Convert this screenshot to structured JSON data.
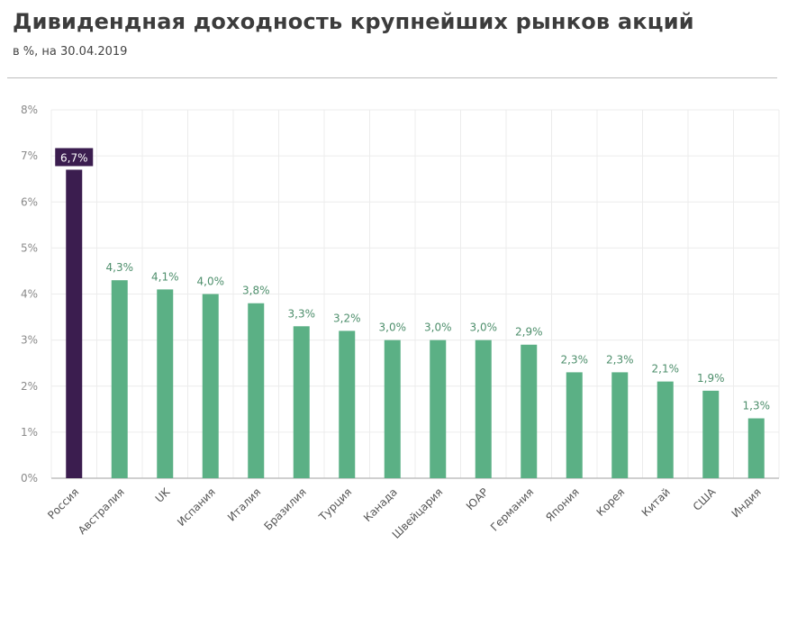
{
  "chart_data": {
    "type": "bar",
    "title": "Дивидендная доходность крупнейших рынков акций",
    "subtitle": "в %, на 30.04.2019",
    "xlabel": "",
    "ylabel": "",
    "ylim": [
      0,
      8
    ],
    "yticks": [
      "0%",
      "1%",
      "2%",
      "3%",
      "4%",
      "5%",
      "6%",
      "7%",
      "8%"
    ],
    "grid": true,
    "categories": [
      "Россия",
      "Австралия",
      "UK",
      "Испания",
      "Италия",
      "Бразилия",
      "Турция",
      "Канада",
      "Швейцария",
      "ЮАР",
      "Германия",
      "Япония",
      "Корея",
      "Китай",
      "США",
      "Индия"
    ],
    "values": [
      6.7,
      4.3,
      4.1,
      4.0,
      3.8,
      3.3,
      3.2,
      3.0,
      3.0,
      3.0,
      2.9,
      2.3,
      2.3,
      2.1,
      1.9,
      1.3
    ],
    "labels": [
      "6,7%",
      "4,3%",
      "4,1%",
      "4,0%",
      "3,8%",
      "3,3%",
      "3,2%",
      "3,0%",
      "3,0%",
      "3,0%",
      "2,9%",
      "2,3%",
      "2,3%",
      "2,1%",
      "1,9%",
      "1,3%"
    ],
    "highlight_index": 0,
    "colors": {
      "highlight": "#3b1d4f",
      "bar": "#5bb085",
      "label": "#4e8f6c",
      "grid": "#ececec",
      "axis": "#bfbfbf",
      "tick": "#8a8a8a"
    }
  }
}
